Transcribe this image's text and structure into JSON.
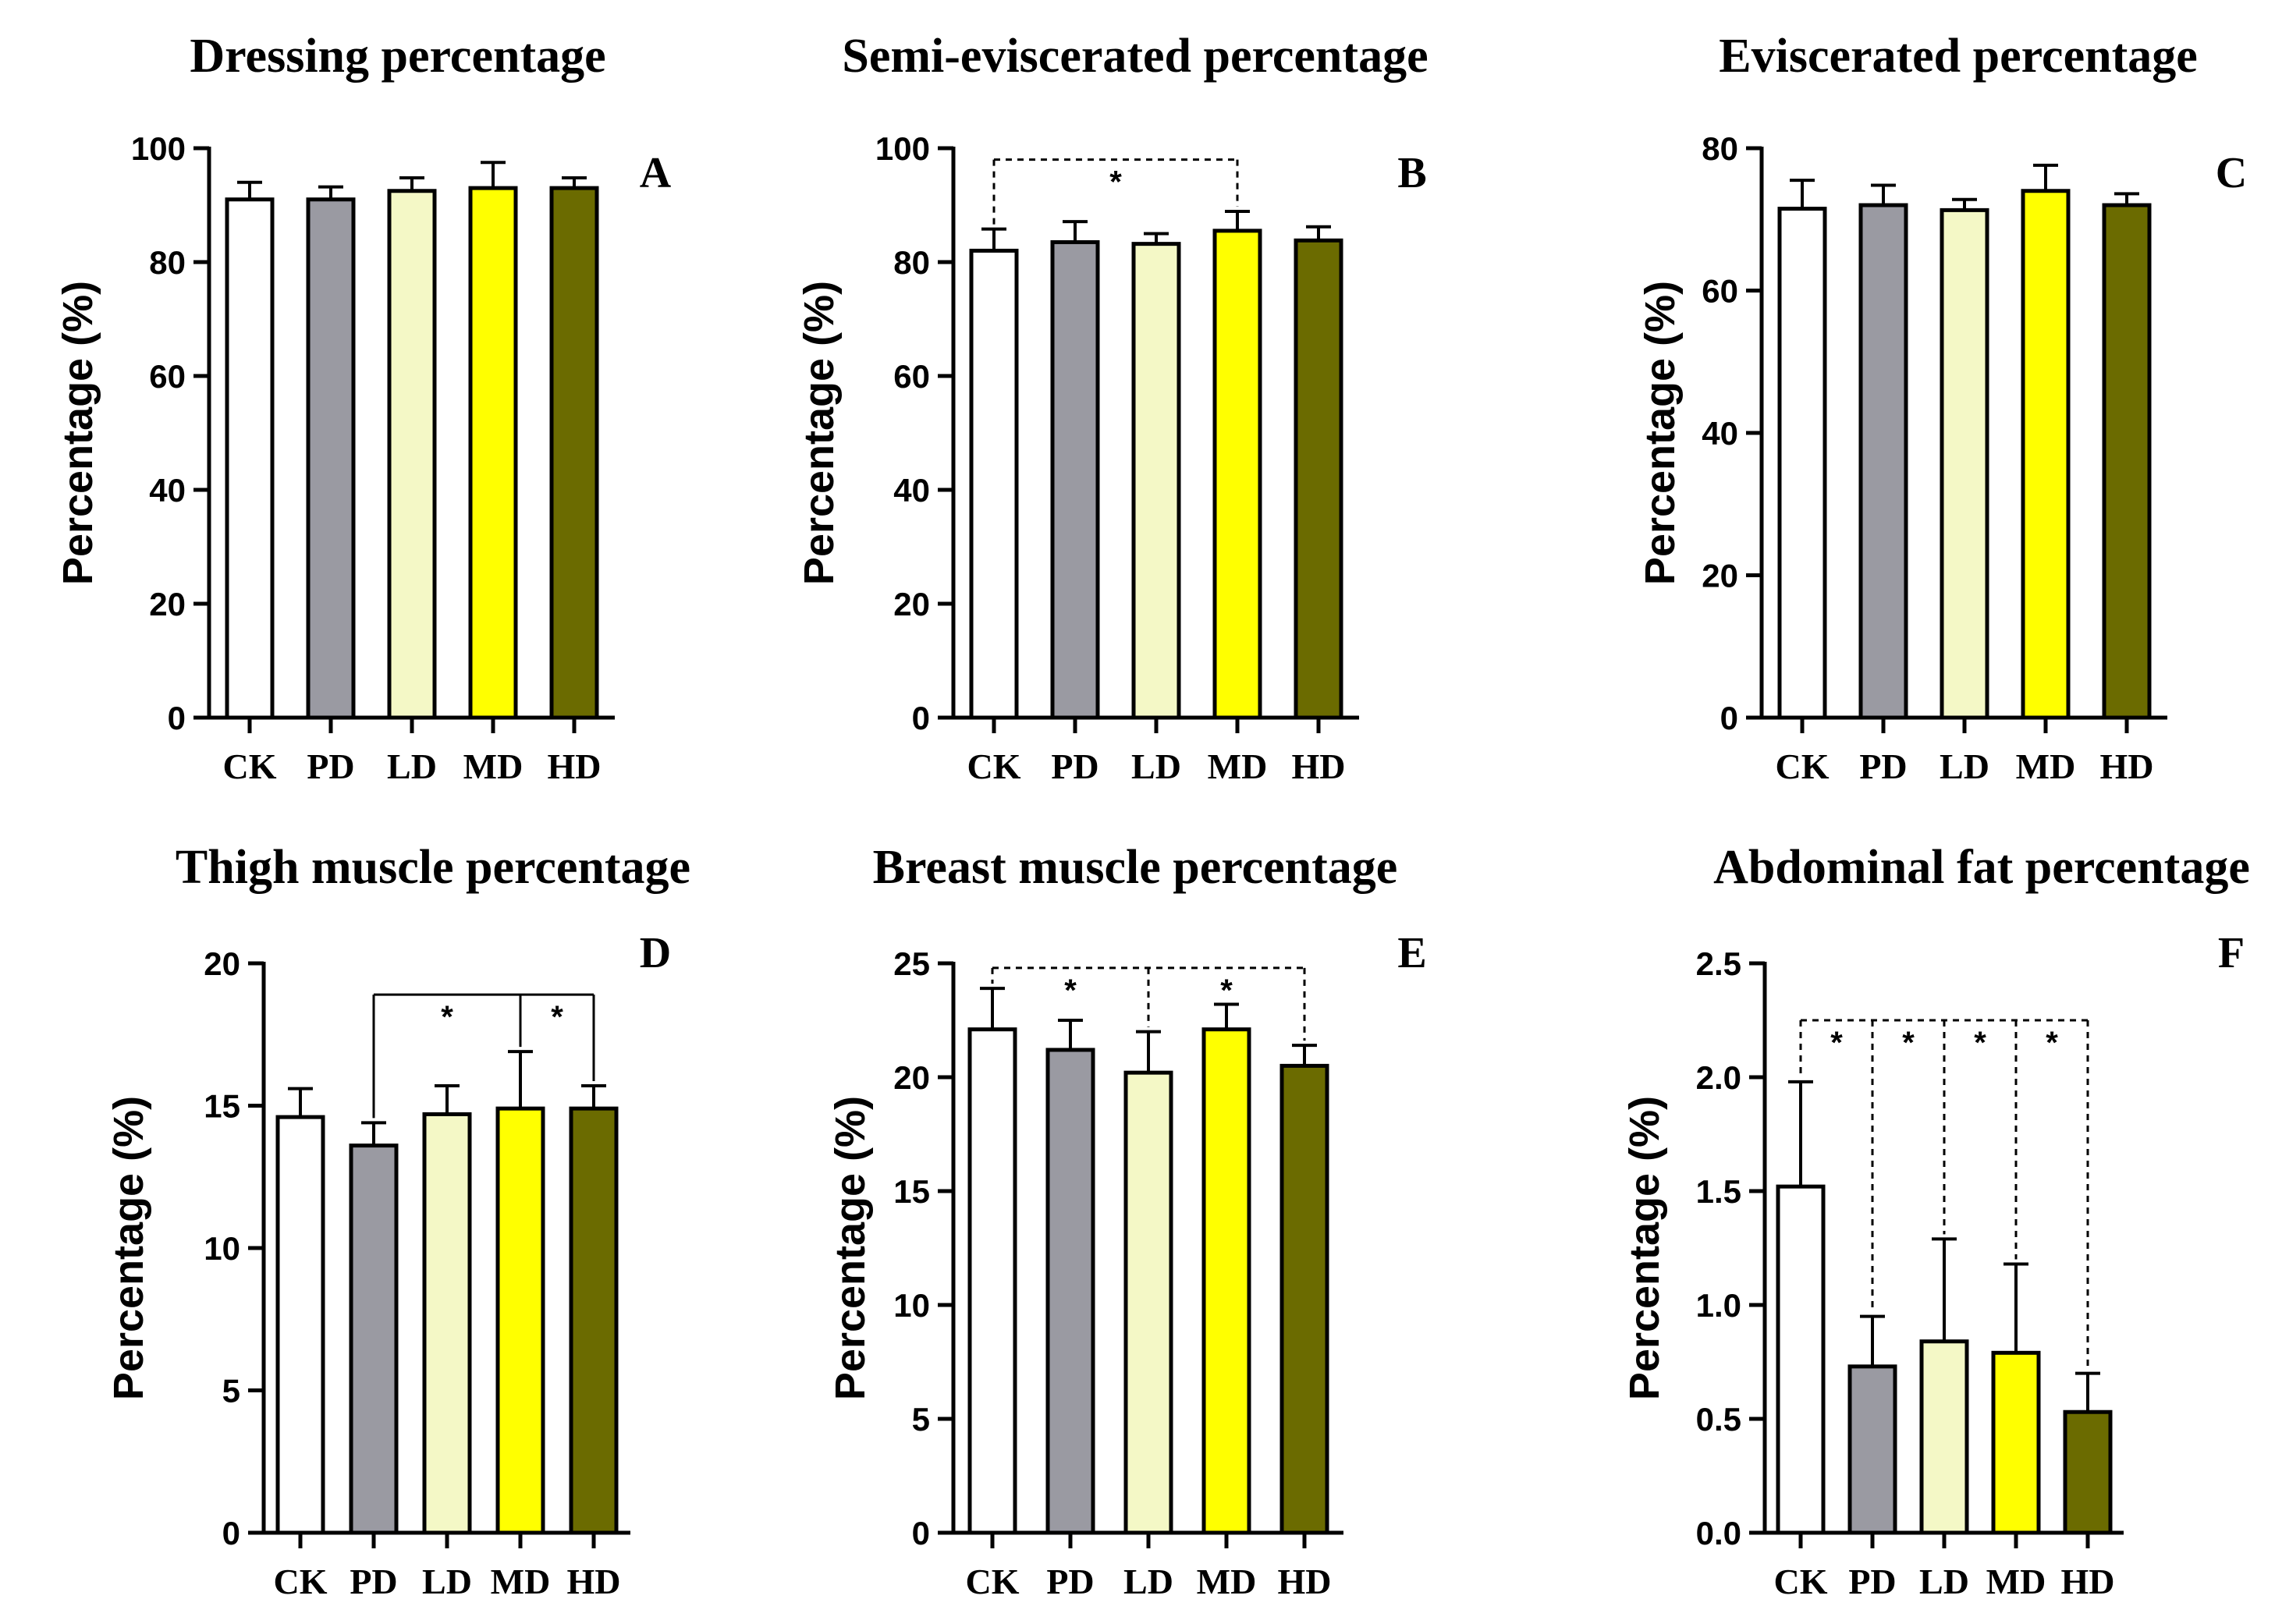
{
  "figure": {
    "description_hidden": false
  },
  "chart_data": [
    {
      "type": "bar",
      "panel": "A",
      "title": "Dressing percentage",
      "ylabel": "Percentage (%)",
      "xlabel": "",
      "categories": [
        "CK",
        "PD",
        "LD",
        "MD",
        "HD"
      ],
      "values": [
        91,
        91,
        92.5,
        93,
        93
      ],
      "errors": [
        3,
        2.2,
        2.3,
        4.5,
        1.8
      ],
      "colors": [
        "#ffffff",
        "#9a9aa2",
        "#f4f8c6",
        "#ffff00",
        "#6b6b00"
      ],
      "ylim": [
        0,
        100
      ],
      "yticks": [
        0,
        20,
        40,
        60,
        80,
        100
      ],
      "ytick_labels": [
        "0",
        "20",
        "40",
        "60",
        "80",
        "100"
      ],
      "significance": []
    },
    {
      "type": "bar",
      "panel": "B",
      "title": "Semi-eviscerated percentage",
      "ylabel": "Percentage (%)",
      "xlabel": "",
      "categories": [
        "CK",
        "PD",
        "LD",
        "MD",
        "HD"
      ],
      "values": [
        82,
        83.5,
        83.2,
        85.5,
        83.8
      ],
      "errors": [
        3.8,
        3.6,
        1.8,
        3.4,
        2.4
      ],
      "colors": [
        "#ffffff",
        "#9a9aa2",
        "#f4f8c6",
        "#ffff00",
        "#6b6b00"
      ],
      "ylim": [
        0,
        100
      ],
      "yticks": [
        0,
        20,
        40,
        60,
        80,
        100
      ],
      "ytick_labels": [
        "0",
        "20",
        "40",
        "60",
        "80",
        "100"
      ],
      "significance": [
        {
          "from": 0,
          "to": 3,
          "y": 98,
          "style": "dashed",
          "label": "*",
          "mid_drop": false
        }
      ]
    },
    {
      "type": "bar",
      "panel": "C",
      "title": "Eviscerated percentage",
      "ylabel": "Percentage (%)",
      "xlabel": "",
      "categories": [
        "CK",
        "PD",
        "LD",
        "MD",
        "HD"
      ],
      "values": [
        71.5,
        72,
        71.3,
        74,
        72
      ],
      "errors": [
        4,
        2.8,
        1.5,
        3.6,
        1.6
      ],
      "colors": [
        "#ffffff",
        "#9a9aa2",
        "#f4f8c6",
        "#ffff00",
        "#6b6b00"
      ],
      "ylim": [
        0,
        80
      ],
      "yticks": [
        0,
        20,
        40,
        60,
        80
      ],
      "ytick_labels": [
        "0",
        "20",
        "40",
        "60",
        "80"
      ],
      "significance": []
    },
    {
      "type": "bar",
      "panel": "D",
      "title": "Thigh muscle percentage",
      "ylabel": "Percentage (%)",
      "xlabel": "",
      "categories": [
        "CK",
        "PD",
        "LD",
        "MD",
        "HD"
      ],
      "values": [
        14.6,
        13.6,
        14.7,
        14.9,
        14.9
      ],
      "errors": [
        1,
        0.8,
        1,
        2,
        0.8
      ],
      "colors": [
        "#ffffff",
        "#9a9aa2",
        "#f4f8c6",
        "#ffff00",
        "#6b6b00"
      ],
      "ylim": [
        0,
        20
      ],
      "yticks": [
        0,
        5,
        10,
        15,
        20
      ],
      "ytick_labels": [
        "0",
        "5",
        "10",
        "15",
        "20"
      ],
      "significance": [
        {
          "from": 1,
          "to": 4,
          "y": 18.9,
          "style": "solid",
          "label": "*",
          "mid_drop": 3,
          "labels": [
            "*",
            "*"
          ]
        }
      ]
    },
    {
      "type": "bar",
      "panel": "E",
      "title": "Breast muscle percentage",
      "ylabel": "Percentage (%)",
      "xlabel": "",
      "categories": [
        "CK",
        "PD",
        "LD",
        "MD",
        "HD"
      ],
      "values": [
        22.1,
        21.2,
        20.2,
        22.1,
        20.5
      ],
      "errors": [
        1.8,
        1.3,
        1.8,
        1.1,
        0.9
      ],
      "colors": [
        "#ffffff",
        "#9a9aa2",
        "#f4f8c6",
        "#ffff00",
        "#6b6b00"
      ],
      "ylim": [
        0,
        25
      ],
      "yticks": [
        0,
        5,
        10,
        15,
        20,
        25
      ],
      "ytick_labels": [
        "0",
        "5",
        "10",
        "15",
        "20",
        "25"
      ],
      "significance": [
        {
          "from": 0,
          "to": 4,
          "y": 24.8,
          "style": "dashed",
          "label": "*",
          "mid_drop": 2,
          "labels": [
            "*",
            "*"
          ]
        }
      ]
    },
    {
      "type": "bar",
      "panel": "F",
      "title": "Abdominal fat percentage",
      "ylabel": "Percentage (%)",
      "xlabel": "",
      "categories": [
        "CK",
        "PD",
        "LD",
        "MD",
        "HD"
      ],
      "values": [
        1.52,
        0.73,
        0.84,
        0.79,
        0.53
      ],
      "errors": [
        0.46,
        0.22,
        0.45,
        0.39,
        0.17
      ],
      "colors": [
        "#ffffff",
        "#9a9aa2",
        "#f4f8c6",
        "#ffff00",
        "#6b6b00"
      ],
      "ylim": [
        0,
        2.5
      ],
      "yticks": [
        0,
        0.5,
        1.0,
        1.5,
        2.0,
        2.5
      ],
      "ytick_labels": [
        "0.0",
        "0.5",
        "1.0",
        "1.5",
        "2.0",
        "2.5"
      ],
      "significance": [
        {
          "from": 0,
          "to": 4,
          "y": 2.25,
          "style": "dashed",
          "label": "*",
          "drops": [
            1,
            2,
            3
          ],
          "labels": [
            "*",
            "*",
            "*",
            "*"
          ]
        }
      ]
    }
  ]
}
